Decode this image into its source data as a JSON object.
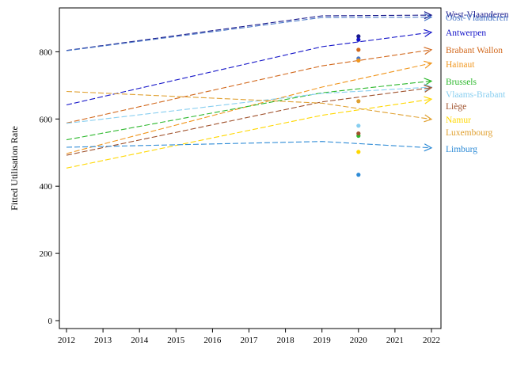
{
  "chart_data": {
    "type": "line",
    "title": "",
    "xlabel": "",
    "ylabel": "Fitted Utilisation Rate",
    "xlim": [
      2012,
      2022
    ],
    "ylim": [
      0,
      900
    ],
    "x_ticks": [
      2012,
      2013,
      2014,
      2015,
      2016,
      2017,
      2018,
      2019,
      2020,
      2021,
      2022
    ],
    "y_ticks": [
      0,
      200,
      400,
      600,
      800
    ],
    "grid": false,
    "legend": "direct labels at right end of lines",
    "series": [
      {
        "name": "West-Vlaanderen",
        "color": "#1a1a8c",
        "points": [
          [
            2012,
            804
          ],
          [
            2019,
            907
          ],
          [
            2022,
            909
          ]
        ],
        "observed_2020": 846
      },
      {
        "name": "Oost-Vlaanderen",
        "color": "#4a78c8",
        "points": [
          [
            2012,
            803
          ],
          [
            2019,
            902
          ],
          [
            2022,
            903
          ]
        ],
        "observed_2020": 780
      },
      {
        "name": "Antwerpen",
        "color": "#1414c8",
        "points": [
          [
            2012,
            642
          ],
          [
            2019,
            815
          ],
          [
            2022,
            858
          ]
        ],
        "observed_2020": 836
      },
      {
        "name": "Brabant Wallon",
        "color": "#d2691e",
        "points": [
          [
            2012,
            588
          ],
          [
            2019,
            758
          ],
          [
            2022,
            806
          ]
        ],
        "observed_2020": 806
      },
      {
        "name": "Hainaut",
        "color": "#f0961e",
        "points": [
          [
            2012,
            497
          ],
          [
            2019,
            695
          ],
          [
            2022,
            766
          ]
        ],
        "observed_2020": 774
      },
      {
        "name": "Brussels",
        "color": "#2db82d",
        "points": [
          [
            2012,
            538
          ],
          [
            2019,
            678
          ],
          [
            2022,
            713
          ]
        ],
        "observed_2020": 550
      },
      {
        "name": "Vlaams-Brabant",
        "color": "#87cef0",
        "points": [
          [
            2012,
            587
          ],
          [
            2019,
            676
          ],
          [
            2022,
            695
          ]
        ],
        "observed_2020": 580
      },
      {
        "name": "Liège",
        "color": "#a0522d",
        "points": [
          [
            2012,
            492
          ],
          [
            2019,
            651
          ],
          [
            2022,
            693
          ]
        ],
        "observed_2020": 557
      },
      {
        "name": "Namur",
        "color": "#ffd700",
        "points": [
          [
            2012,
            454
          ],
          [
            2019,
            611
          ],
          [
            2022,
            659
          ]
        ],
        "observed_2020": 502
      },
      {
        "name": "Luxembourg",
        "color": "#e0a030",
        "points": [
          [
            2012,
            682
          ],
          [
            2019,
            647
          ],
          [
            2022,
            599
          ]
        ],
        "observed_2020": 653
      },
      {
        "name": "Limburg",
        "color": "#2e8bd6",
        "points": [
          [
            2012,
            516
          ],
          [
            2019,
            533
          ],
          [
            2022,
            514
          ]
        ],
        "observed_2020": 434
      }
    ]
  }
}
